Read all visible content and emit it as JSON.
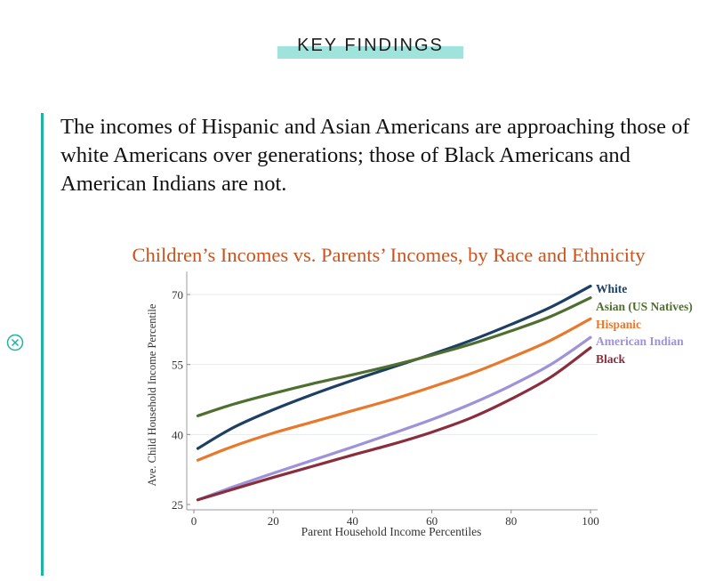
{
  "kicker": "KEY FINDINGS",
  "finding": "The incomes of Hispanic and Asian Americans are approaching those of white Americans over generations; those of Black Americans and American Indians are not.",
  "colors": {
    "accent": "#1fb3a6",
    "kicker_highlight": "#9fe3dc",
    "chart_title": "#c9541f"
  },
  "side_icon": "circle-x-icon",
  "chart_data": {
    "type": "line",
    "title": "Children’s Incomes vs. Parents’ Incomes, by Race and Ethnicity",
    "xlabel": "Parent Household Income Percentiles",
    "ylabel": "Ave. Child Household Income Percentile",
    "xlim": [
      0,
      100
    ],
    "ylim": [
      25,
      73
    ],
    "xticks": [
      0,
      20,
      40,
      60,
      80,
      100
    ],
    "yticks": [
      25,
      40,
      55,
      70
    ],
    "grid": true,
    "legend": "right (end-of-line labels)",
    "x": [
      1,
      10,
      20,
      30,
      40,
      50,
      60,
      70,
      80,
      90,
      100
    ],
    "series": [
      {
        "name": "White",
        "color": "#1c3f63",
        "values": [
          37.0,
          41.5,
          45.3,
          48.6,
          51.6,
          54.4,
          57.2,
          60.2,
          63.6,
          67.3,
          71.8
        ]
      },
      {
        "name": "Asian (US Natives)",
        "color": "#4f6f2f",
        "values": [
          44.0,
          46.5,
          48.8,
          50.9,
          52.8,
          54.8,
          57.0,
          59.4,
          62.2,
          65.3,
          69.3
        ]
      },
      {
        "name": "Hispanic",
        "color": "#e8782b",
        "values": [
          34.5,
          37.5,
          40.3,
          42.7,
          45.1,
          47.5,
          50.2,
          53.1,
          56.5,
          60.2,
          64.8
        ]
      },
      {
        "name": "American Indian",
        "color": "#9e93d8",
        "values": [
          26.0,
          28.8,
          31.7,
          34.5,
          37.3,
          40.2,
          43.2,
          46.6,
          50.5,
          55.0,
          60.8
        ]
      },
      {
        "name": "Black",
        "color": "#8a2e3d",
        "values": [
          26.0,
          28.3,
          30.8,
          33.2,
          35.6,
          37.9,
          40.5,
          43.6,
          47.6,
          52.3,
          58.6
        ]
      }
    ]
  }
}
